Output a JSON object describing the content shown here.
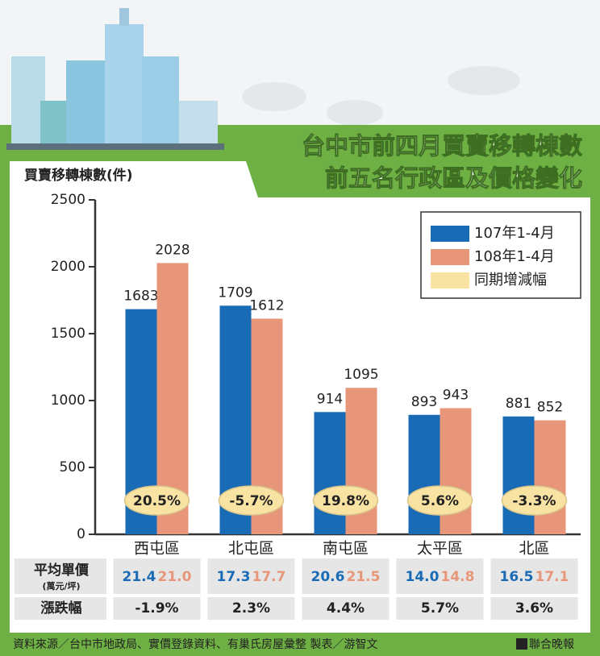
{
  "chart_data": {
    "type": "bar",
    "title": [
      "台中市前四月買賣移轉棟數",
      "前五名行政區及價格變化"
    ],
    "y_label": "買賣移轉棟數(件)",
    "categories": [
      "西屯區",
      "北屯區",
      "南屯區",
      "太平區",
      "北區"
    ],
    "series": [
      {
        "name": "107年1-4月",
        "color": "#1a6bb5",
        "values": [
          1683,
          1709,
          914,
          893,
          881
        ]
      },
      {
        "name": "108年1-4月",
        "color": "#e8967a",
        "values": [
          2028,
          1612,
          1095,
          943,
          852
        ]
      }
    ],
    "change": {
      "name": "同期增減幅",
      "color": "#f8e3a3",
      "values": [
        20.5,
        -5.7,
        19.8,
        5.6,
        -3.3
      ],
      "value_labels": [
        "20.5%",
        "-5.7%",
        "19.8%",
        "5.6%",
        "-3.3%"
      ]
    },
    "ylim": [
      0,
      2500
    ],
    "yticks": [
      0,
      500,
      1000,
      1500,
      2000,
      2500
    ],
    "table": {
      "price_label": "平均單價",
      "price_unit": "(萬元/坪)",
      "price_107": [
        "21.4",
        "17.3",
        "20.6",
        "14.0",
        "16.5"
      ],
      "price_108": [
        "21.0",
        "17.7",
        "21.5",
        "14.8",
        "17.1"
      ],
      "change_label": "漲跌幅",
      "change": [
        "-1.9%",
        "2.3%",
        "4.4%",
        "5.7%",
        "3.6%"
      ]
    },
    "source": "資料來源／台中市地政局、實價登錄資料、有巢氏房屋彙整 製表／游智文",
    "publisher": "聯合晚報"
  }
}
